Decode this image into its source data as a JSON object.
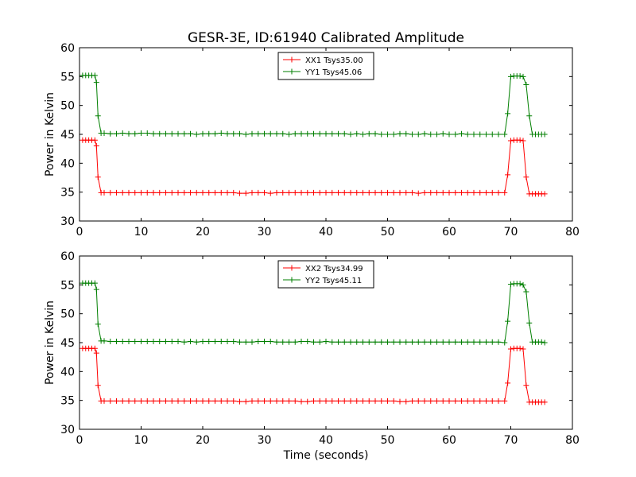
{
  "title": "GESR-3E, ID:61940 Calibrated Amplitude",
  "chart_data": [
    {
      "type": "line",
      "title": "GESR-3E, ID:61940 Calibrated Amplitude",
      "xlabel": "",
      "ylabel": "Power in Kelvin",
      "xlim": [
        0,
        80
      ],
      "ylim": [
        30,
        60
      ],
      "xticks": [
        0,
        10,
        20,
        30,
        40,
        50,
        60,
        70,
        80
      ],
      "yticks": [
        30,
        35,
        40,
        45,
        50,
        55,
        60
      ],
      "grid": false,
      "legend_position": "top-center",
      "series": [
        {
          "name": "XX1 Tsys35.00",
          "color": "#ff0000",
          "marker": "plus",
          "x": [
            0.5,
            1.0,
            1.5,
            2.0,
            2.5,
            2.75,
            3.0,
            3.5,
            4,
            5,
            6,
            7,
            8,
            9,
            10,
            11,
            12,
            13,
            14,
            15,
            16,
            17,
            18,
            19,
            20,
            21,
            22,
            23,
            24,
            25,
            26,
            27,
            28,
            29,
            30,
            31,
            32,
            33,
            34,
            35,
            36,
            37,
            38,
            39,
            40,
            41,
            42,
            43,
            44,
            45,
            46,
            47,
            48,
            49,
            50,
            51,
            52,
            53,
            54,
            55,
            56,
            57,
            58,
            59,
            60,
            61,
            62,
            63,
            64,
            65,
            66,
            67,
            68,
            69,
            69.5,
            70,
            70.5,
            71,
            71.5,
            72,
            72.5,
            73,
            73.5,
            74,
            74.5,
            75,
            75.5
          ],
          "y": [
            44.0,
            44.0,
            44.0,
            44.0,
            44.0,
            43.0,
            37.6,
            34.9,
            34.9,
            34.9,
            34.9,
            34.9,
            34.9,
            34.9,
            34.9,
            34.9,
            34.9,
            34.9,
            34.9,
            34.9,
            34.9,
            34.9,
            34.9,
            34.9,
            34.9,
            34.9,
            34.9,
            34.9,
            34.9,
            34.9,
            34.8,
            34.8,
            34.9,
            34.9,
            34.9,
            34.8,
            34.9,
            34.9,
            34.9,
            34.9,
            34.9,
            34.9,
            34.9,
            34.9,
            34.9,
            34.9,
            34.9,
            34.9,
            34.9,
            34.9,
            34.9,
            34.9,
            34.9,
            34.9,
            34.9,
            34.9,
            34.9,
            34.9,
            34.9,
            34.8,
            34.9,
            34.9,
            34.9,
            34.9,
            34.9,
            34.9,
            34.9,
            34.9,
            34.9,
            34.9,
            34.9,
            34.9,
            34.9,
            34.9,
            38.0,
            43.9,
            44.0,
            44.0,
            44.0,
            43.9,
            37.6,
            34.7,
            34.7,
            34.7,
            34.7,
            34.7,
            34.7
          ]
        },
        {
          "name": "YY1 Tsys45.06",
          "color": "#007f00",
          "marker": "plus",
          "x": [
            0.5,
            1.0,
            1.5,
            2.0,
            2.5,
            2.75,
            3.0,
            3.5,
            4,
            5,
            6,
            7,
            8,
            9,
            10,
            11,
            12,
            13,
            14,
            15,
            16,
            17,
            18,
            19,
            20,
            21,
            22,
            23,
            24,
            25,
            26,
            27,
            28,
            29,
            30,
            31,
            32,
            33,
            34,
            35,
            36,
            37,
            38,
            39,
            40,
            41,
            42,
            43,
            44,
            45,
            46,
            47,
            48,
            49,
            50,
            51,
            52,
            53,
            54,
            55,
            56,
            57,
            58,
            59,
            60,
            61,
            62,
            63,
            64,
            65,
            66,
            67,
            68,
            69,
            69.5,
            70,
            70.5,
            71,
            71.5,
            72,
            72.5,
            73,
            73.5,
            74,
            74.5,
            75,
            75.5
          ],
          "y": [
            55.2,
            55.2,
            55.2,
            55.2,
            55.2,
            54.0,
            48.2,
            45.2,
            45.2,
            45.1,
            45.1,
            45.2,
            45.1,
            45.1,
            45.2,
            45.2,
            45.1,
            45.1,
            45.1,
            45.1,
            45.1,
            45.1,
            45.1,
            45.0,
            45.1,
            45.1,
            45.1,
            45.2,
            45.1,
            45.1,
            45.1,
            45.0,
            45.1,
            45.1,
            45.1,
            45.1,
            45.1,
            45.1,
            45.0,
            45.1,
            45.1,
            45.1,
            45.1,
            45.1,
            45.1,
            45.1,
            45.1,
            45.1,
            45.0,
            45.1,
            45.0,
            45.1,
            45.1,
            45.0,
            45.0,
            45.0,
            45.1,
            45.1,
            45.0,
            45.0,
            45.1,
            45.0,
            45.0,
            45.1,
            45.0,
            45.0,
            45.1,
            45.0,
            45.0,
            45.0,
            45.0,
            45.0,
            45.0,
            45.0,
            48.6,
            55.0,
            55.1,
            55.1,
            55.1,
            55.0,
            53.6,
            48.2,
            45.0,
            45.0,
            45.0,
            45.0,
            45.0
          ]
        }
      ]
    },
    {
      "type": "line",
      "title": "",
      "xlabel": "Time (seconds)",
      "ylabel": "Power in Kelvin",
      "xlim": [
        0,
        80
      ],
      "ylim": [
        30,
        60
      ],
      "xticks": [
        0,
        10,
        20,
        30,
        40,
        50,
        60,
        70,
        80
      ],
      "yticks": [
        30,
        35,
        40,
        45,
        50,
        55,
        60
      ],
      "grid": false,
      "legend_position": "top-center",
      "series": [
        {
          "name": "XX2 Tsys34.99",
          "color": "#ff0000",
          "marker": "plus",
          "x": [
            0.5,
            1.0,
            1.5,
            2.0,
            2.5,
            2.75,
            3.0,
            3.5,
            4,
            5,
            6,
            7,
            8,
            9,
            10,
            11,
            12,
            13,
            14,
            15,
            16,
            17,
            18,
            19,
            20,
            21,
            22,
            23,
            24,
            25,
            26,
            27,
            28,
            29,
            30,
            31,
            32,
            33,
            34,
            35,
            36,
            37,
            38,
            39,
            40,
            41,
            42,
            43,
            44,
            45,
            46,
            47,
            48,
            49,
            50,
            51,
            52,
            53,
            54,
            55,
            56,
            57,
            58,
            59,
            60,
            61,
            62,
            63,
            64,
            65,
            66,
            67,
            68,
            69,
            69.5,
            70,
            70.5,
            71,
            71.5,
            72,
            72.5,
            73,
            73.5,
            74,
            74.5,
            75,
            75.5
          ],
          "y": [
            44.0,
            44.0,
            44.0,
            44.0,
            44.0,
            43.2,
            37.6,
            34.9,
            34.9,
            34.9,
            34.9,
            34.9,
            34.9,
            34.9,
            34.9,
            34.9,
            34.9,
            34.9,
            34.9,
            34.9,
            34.9,
            34.9,
            34.9,
            34.9,
            34.9,
            34.9,
            34.9,
            34.9,
            34.9,
            34.9,
            34.8,
            34.8,
            34.9,
            34.9,
            34.9,
            34.9,
            34.9,
            34.9,
            34.9,
            34.9,
            34.8,
            34.8,
            34.9,
            34.9,
            34.9,
            34.9,
            34.9,
            34.9,
            34.9,
            34.9,
            34.9,
            34.9,
            34.9,
            34.9,
            34.9,
            34.9,
            34.8,
            34.8,
            34.9,
            34.9,
            34.9,
            34.9,
            34.9,
            34.9,
            34.9,
            34.9,
            34.9,
            34.9,
            34.9,
            34.9,
            34.9,
            34.9,
            34.9,
            34.9,
            38.0,
            43.9,
            44.0,
            44.0,
            44.0,
            43.9,
            37.6,
            34.7,
            34.7,
            34.7,
            34.7,
            34.7,
            34.7
          ]
        },
        {
          "name": "YY2 Tsys45.11",
          "color": "#007f00",
          "marker": "plus",
          "x": [
            0.5,
            1.0,
            1.5,
            2.0,
            2.5,
            2.75,
            3.0,
            3.5,
            4,
            5,
            6,
            7,
            8,
            9,
            10,
            11,
            12,
            13,
            14,
            15,
            16,
            17,
            18,
            19,
            20,
            21,
            22,
            23,
            24,
            25,
            26,
            27,
            28,
            29,
            30,
            31,
            32,
            33,
            34,
            35,
            36,
            37,
            38,
            39,
            40,
            41,
            42,
            43,
            44,
            45,
            46,
            47,
            48,
            49,
            50,
            51,
            52,
            53,
            54,
            55,
            56,
            57,
            58,
            59,
            60,
            61,
            62,
            63,
            64,
            65,
            66,
            67,
            68,
            69,
            69.5,
            70,
            70.5,
            71,
            71.5,
            72,
            72.5,
            73,
            73.5,
            74,
            74.5,
            75,
            75.5
          ],
          "y": [
            55.3,
            55.3,
            55.3,
            55.3,
            55.3,
            54.2,
            48.2,
            45.3,
            45.3,
            45.2,
            45.2,
            45.2,
            45.2,
            45.2,
            45.2,
            45.2,
            45.2,
            45.2,
            45.2,
            45.2,
            45.2,
            45.1,
            45.2,
            45.1,
            45.2,
            45.2,
            45.2,
            45.2,
            45.2,
            45.2,
            45.1,
            45.1,
            45.1,
            45.2,
            45.2,
            45.2,
            45.1,
            45.1,
            45.1,
            45.1,
            45.2,
            45.2,
            45.1,
            45.1,
            45.2,
            45.1,
            45.1,
            45.1,
            45.1,
            45.1,
            45.1,
            45.1,
            45.1,
            45.1,
            45.1,
            45.1,
            45.1,
            45.1,
            45.1,
            45.1,
            45.1,
            45.1,
            45.1,
            45.1,
            45.1,
            45.1,
            45.1,
            45.1,
            45.1,
            45.1,
            45.1,
            45.1,
            45.1,
            45.0,
            48.7,
            55.1,
            55.2,
            55.2,
            55.2,
            55.0,
            53.8,
            48.4,
            45.1,
            45.1,
            45.1,
            45.1,
            45.0
          ]
        }
      ]
    }
  ]
}
